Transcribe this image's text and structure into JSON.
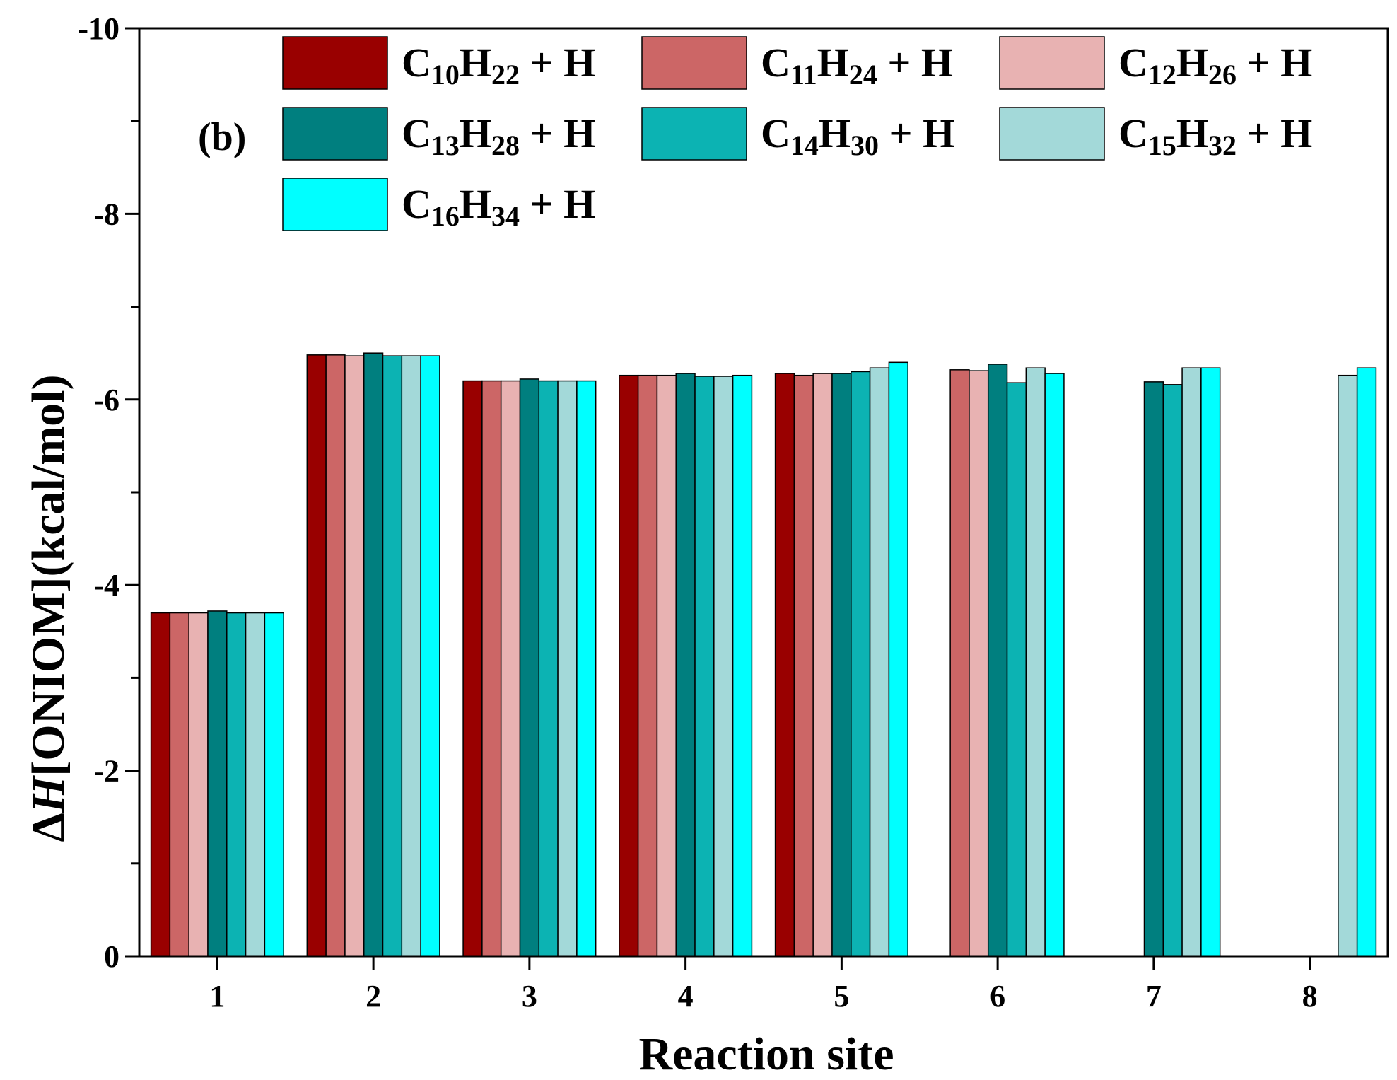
{
  "chart_data": {
    "type": "bar",
    "panel_label": "(b)",
    "xlabel": "Reaction site",
    "ylabel_prefix": "Δ",
    "ylabel_italic": "H",
    "ylabel_suffix": "[ONIOM](kcal/mol)",
    "ylim": [
      0,
      -10
    ],
    "yticks": [
      0,
      -2,
      -4,
      -6,
      -8,
      -10
    ],
    "categories": [
      "1",
      "2",
      "3",
      "4",
      "5",
      "6",
      "7",
      "8"
    ],
    "series": [
      {
        "name": "C10H22 + H",
        "c": "10",
        "h": "22",
        "color": "#990000",
        "values": [
          -3.7,
          -6.48,
          -6.2,
          -6.26,
          -6.28,
          null,
          null,
          null
        ]
      },
      {
        "name": "C11H24 + H",
        "c": "11",
        "h": "24",
        "color": "#cc6666",
        "values": [
          -3.7,
          -6.48,
          -6.2,
          -6.26,
          -6.26,
          -6.32,
          null,
          null
        ]
      },
      {
        "name": "C12H26 + H",
        "c": "12",
        "h": "26",
        "color": "#e8b2b2",
        "values": [
          -3.7,
          -6.47,
          -6.2,
          -6.26,
          -6.28,
          -6.31,
          null,
          null
        ]
      },
      {
        "name": "C13H28 + H",
        "c": "13",
        "h": "28",
        "color": "#007f7f",
        "values": [
          -3.72,
          -6.5,
          -6.22,
          -6.28,
          -6.28,
          -6.38,
          -6.19,
          null
        ]
      },
      {
        "name": "C14H30 + H",
        "c": "14",
        "h": "30",
        "color": "#0cb3b3",
        "values": [
          -3.7,
          -6.47,
          -6.2,
          -6.25,
          -6.3,
          -6.18,
          -6.16,
          null
        ]
      },
      {
        "name": "C15H32 + H",
        "c": "15",
        "h": "32",
        "color": "#a3d9d9",
        "values": [
          -3.7,
          -6.47,
          -6.2,
          -6.25,
          -6.34,
          -6.34,
          -6.34,
          -6.26
        ]
      },
      {
        "name": "C16H34 + H",
        "c": "16",
        "h": "34",
        "color": "#00ffff",
        "values": [
          -3.7,
          -6.47,
          -6.2,
          -6.26,
          -6.4,
          -6.28,
          -6.34,
          -6.34
        ]
      }
    ]
  }
}
